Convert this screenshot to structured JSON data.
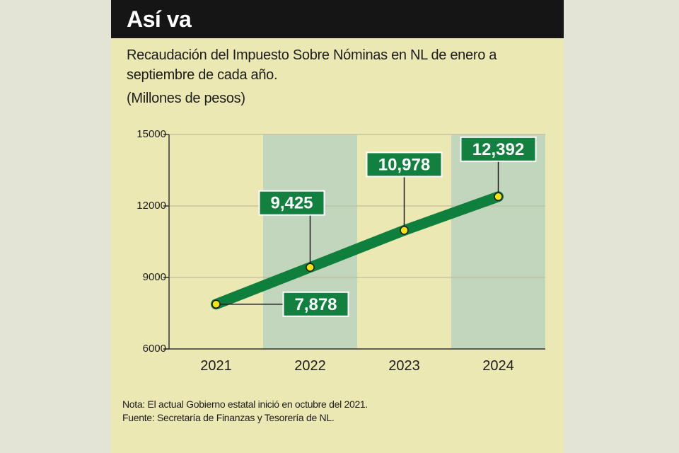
{
  "header": {
    "title": "Así va"
  },
  "chart_data": {
    "type": "line",
    "title": "Así va",
    "subtitle": "Recaudación del Impuesto Sobre Nóminas en NL de enero a septiembre de cada año.",
    "ylabel": "(Millones de pesos)",
    "categories": [
      "2021",
      "2022",
      "2023",
      "2024"
    ],
    "values": [
      7878,
      9425,
      10978,
      12392
    ],
    "value_labels": [
      "7,878",
      "9,425",
      "10,978",
      "12,392"
    ],
    "yticks": [
      "15000",
      "12000",
      "9000",
      "6000"
    ],
    "ylim": [
      6000,
      15000
    ],
    "grid": true,
    "colors": {
      "line": "#0f7f3e",
      "label_bg": "#12803f",
      "point": "#f4e312",
      "band": "#c2d6bd",
      "background": "#ece8b4"
    }
  },
  "notes": [
    "Nota: El actual Gobierno estatal inició en octubre del 2021.",
    "Fuente: Secretaría de Finanzas y Tesorería de NL."
  ]
}
